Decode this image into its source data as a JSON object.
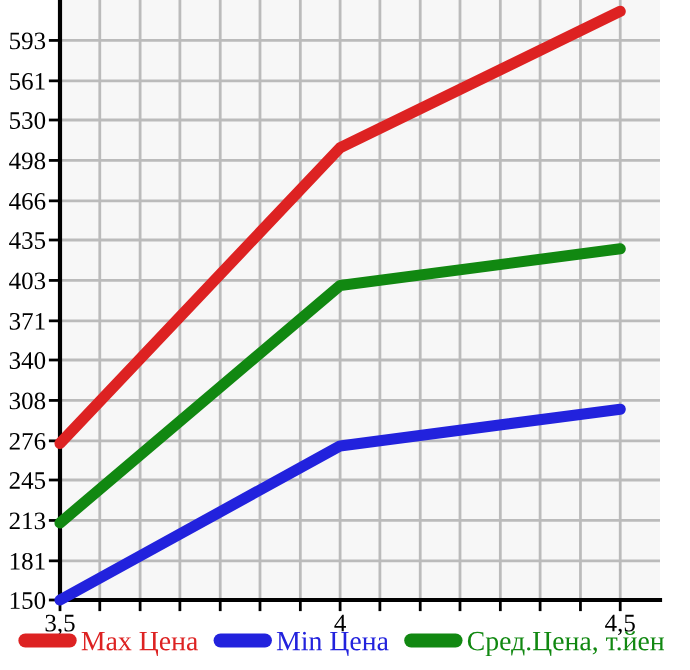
{
  "chart_data": {
    "type": "line",
    "x": [
      3.5,
      4,
      4.5
    ],
    "series": [
      {
        "name": "Max Цена",
        "color": "#dd2222",
        "values": [
          274,
          508,
          616
        ]
      },
      {
        "name": "Min Цена",
        "color": "#2222dd",
        "values": [
          150,
          272,
          301
        ]
      },
      {
        "name": "Сред.Цена, т.йен",
        "color": "#118811",
        "values": [
          211,
          399,
          428
        ]
      }
    ],
    "xlim": [
      3.5,
      4.571
    ],
    "ylim": [
      150,
      625
    ],
    "xticks": [
      {
        "value": 3.5,
        "label": "3,5"
      },
      {
        "value": 3.571,
        "label": null
      },
      {
        "value": 3.643,
        "label": null
      },
      {
        "value": 3.714,
        "label": null
      },
      {
        "value": 3.786,
        "label": null
      },
      {
        "value": 3.857,
        "label": null
      },
      {
        "value": 3.929,
        "label": null
      },
      {
        "value": 4,
        "label": "4"
      },
      {
        "value": 4.071,
        "label": null
      },
      {
        "value": 4.143,
        "label": null
      },
      {
        "value": 4.214,
        "label": null
      },
      {
        "value": 4.286,
        "label": null
      },
      {
        "value": 4.357,
        "label": null
      },
      {
        "value": 4.429,
        "label": null
      },
      {
        "value": 4.5,
        "label": "4,5"
      }
    ],
    "yticks": [
      150,
      181,
      213,
      245,
      276,
      308,
      340,
      371,
      403,
      435,
      466,
      498,
      530,
      561,
      593
    ],
    "grid": true,
    "legend": "bottom",
    "marker": "none",
    "line_style": "solid"
  }
}
